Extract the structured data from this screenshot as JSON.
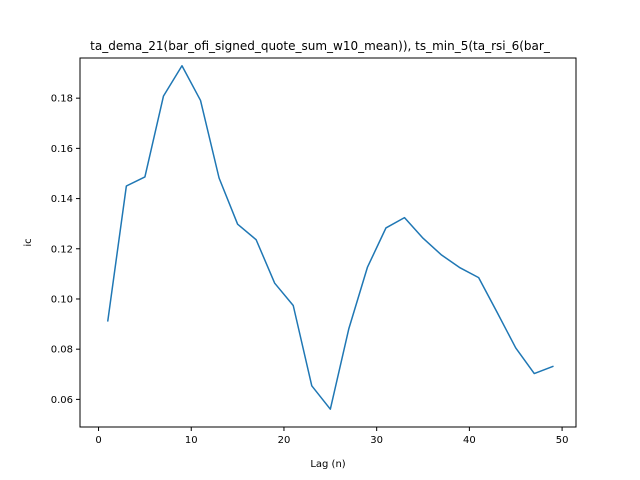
{
  "chart_data": {
    "type": "line",
    "title": "ta_dema_21(bar_ofi_signed_quote_sum_w10_mean)), ts_min_5(ta_rsi_6(bar_",
    "xlabel": "Lag (n)",
    "ylabel": "ic",
    "xlim": [
      -2,
      51.5
    ],
    "ylim": [
      0.049,
      0.196
    ],
    "xticks": [
      0,
      10,
      20,
      30,
      40,
      50
    ],
    "yticks": [
      0.06,
      0.08,
      0.1,
      0.12,
      0.14,
      0.16,
      0.18
    ],
    "ytick_labels": [
      "0.06",
      "0.08",
      "0.10",
      "0.12",
      "0.14",
      "0.16",
      "0.18"
    ],
    "grid": false,
    "series": [
      {
        "color": "#1f77b4",
        "x": [
          1,
          3,
          5,
          7,
          9,
          11,
          13,
          15,
          17,
          19,
          21,
          23,
          25,
          27,
          29,
          31,
          33,
          35,
          37,
          39,
          41,
          43,
          45,
          47,
          49
        ],
        "y": [
          0.0913,
          0.145,
          0.1486,
          0.1808,
          0.1929,
          0.1791,
          0.1482,
          0.1298,
          0.1236,
          0.1063,
          0.0974,
          0.0654,
          0.0561,
          0.0882,
          0.1126,
          0.1283,
          0.1324,
          0.1242,
          0.1175,
          0.1124,
          0.1085,
          0.0946,
          0.0805,
          0.0703,
          0.0731
        ]
      }
    ]
  }
}
